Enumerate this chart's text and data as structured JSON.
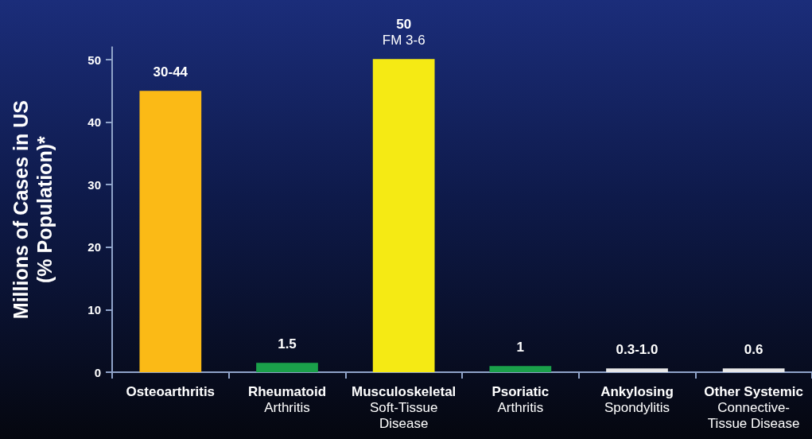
{
  "chart_data": {
    "type": "bar",
    "ylabel": "Millions of Cases in US\n(% Population)*",
    "categories": [
      "Osteoarthritis",
      "Rheumatoid\nArthritis",
      "Musculoskeletal\nSoft-Tissue\nDisease",
      "Psoriatic\nArthritis",
      "Ankylosing\nSpondylitis",
      "Other Systemic\nConnective-\nTissue Disease"
    ],
    "values": [
      45,
      1.5,
      50.1,
      1,
      0.6,
      0.6
    ],
    "colors": [
      "#fbba16",
      "#1aa04a",
      "#f5ea14",
      "#1aa04a",
      "#e8e8e8",
      "#e8e8e8"
    ],
    "value_labels": [
      "30-44",
      "1.5",
      "50\nFM 3-6",
      "1",
      "0.3-1.0",
      "0.6"
    ],
    "ylim": [
      0,
      52
    ],
    "yticks": [
      0,
      10,
      20,
      30,
      40,
      50
    ],
    "grid": false
  }
}
